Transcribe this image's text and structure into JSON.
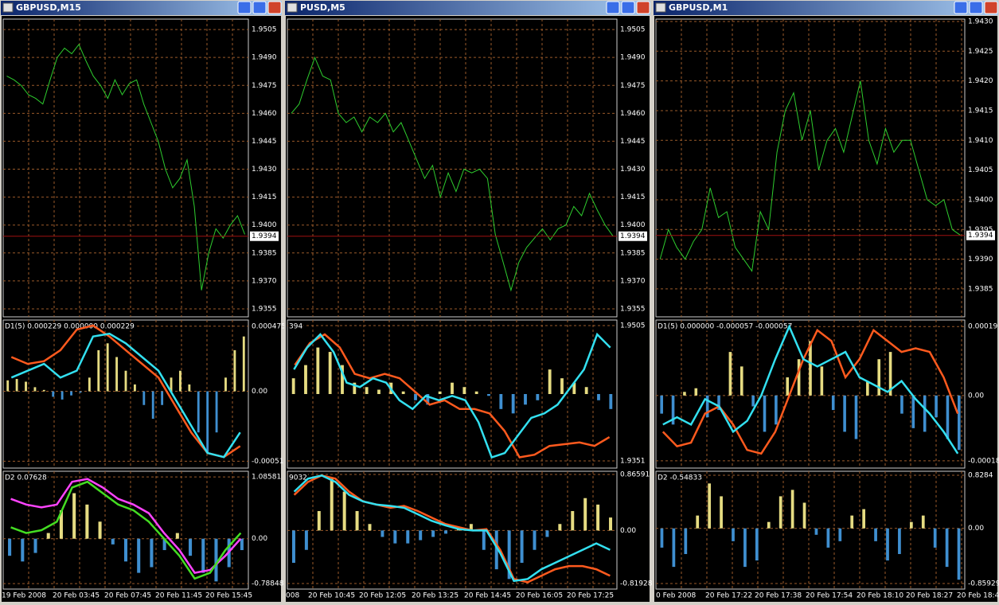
{
  "windows": [
    {
      "title": "GBPUSD,M15",
      "main": {
        "ylim": [
          1.93507,
          1.95106
        ],
        "yticks": [
          1.9505,
          {
            "value": 1.949,
            "label": "1.9490"
          },
          1.9475,
          {
            "value": 1.946,
            "label": "1.9460"
          },
          1.9445,
          {
            "value": 1.943,
            "label": "1.9430"
          },
          1.9415,
          {
            "value": 1.94,
            "label": "1.9400"
          },
          1.9385,
          {
            "value": 1.937,
            "label": "1.9370"
          },
          1.9355
        ],
        "current": 1.9394,
        "color": "#2ecc2e",
        "prices": [
          1.948,
          1.9478,
          1.9475,
          1.947,
          1.9468,
          1.9465,
          1.9478,
          1.949,
          1.9495,
          1.9492,
          1.9497,
          1.9488,
          1.948,
          1.9475,
          1.9468,
          1.9478,
          1.947,
          1.9476,
          1.9478,
          1.9465,
          1.9455,
          1.9445,
          1.943,
          1.942,
          1.9425,
          1.9435,
          1.941,
          1.9365,
          1.9385,
          1.9398,
          1.9393,
          1.94,
          1.9405,
          1.9395
        ]
      },
      "d1": {
        "label": "D1(5) 0.000229 0.000000 0.000229",
        "ylim": [
          -0.00056,
          0.00052
        ],
        "yticks": [
          0.000475,
          {
            "value": 0,
            "label": "0.00"
          },
          -0.00051
        ],
        "up_color": "#e6dc82",
        "down_color": "#3f8fd0",
        "hist": [
          8e-05,
          9e-05,
          7e-05,
          3e-05,
          1e-05,
          -4e-05,
          -6e-05,
          -3e-05,
          -1e-05,
          0.0001,
          0.0003,
          0.00035,
          0.00025,
          0.00015,
          5e-05,
          -0.0001,
          -0.0002,
          -0.0001,
          0.0001,
          0.00015,
          5e-05,
          -0.0003,
          -0.00045,
          -0.0003,
          0.0001,
          0.0003,
          0.0004
        ],
        "lines": [
          {
            "color": "#ff5a1e",
            "values": [
              0.00025,
              0.0002,
              0.00022,
              0.0003,
              0.00045,
              0.00048,
              0.0004,
              0.0003,
              0.0002,
              0.0001,
              -0.0001,
              -0.0003,
              -0.00045,
              -0.00048,
              -0.0004
            ]
          },
          {
            "color": "#33e0f0",
            "values": [
              0.0001,
              0.00015,
              0.0002,
              0.0001,
              0.00015,
              0.0004,
              0.00042,
              0.00035,
              0.00025,
              0.00015,
              -5e-05,
              -0.00025,
              -0.00045,
              -0.00048,
              -0.0003
            ]
          }
        ]
      },
      "d2": {
        "label": "D2 0.07628",
        "ylim": [
          -0.885,
          1.185
        ],
        "yticks": [
          1.08581,
          {
            "value": 0,
            "label": "0.00"
          },
          -0.78848
        ],
        "up_color": "#e6dc82",
        "down_color": "#3f8fd0",
        "hist": [
          -0.3,
          -0.4,
          -0.25,
          0.1,
          0.5,
          0.8,
          0.6,
          0.3,
          -0.1,
          -0.4,
          -0.6,
          -0.5,
          -0.2,
          0.1,
          -0.3,
          -0.6,
          -0.75,
          -0.5,
          -0.2
        ],
        "lines": [
          {
            "color": "#ff44ff",
            "values": [
              0.7,
              0.6,
              0.55,
              0.6,
              1.0,
              1.05,
              0.9,
              0.7,
              0.6,
              0.45,
              0.1,
              -0.2,
              -0.6,
              -0.55,
              -0.3,
              0.0
            ]
          },
          {
            "color": "#44dd22",
            "values": [
              0.2,
              0.1,
              0.15,
              0.3,
              0.9,
              1.0,
              0.8,
              0.6,
              0.5,
              0.3,
              0.0,
              -0.3,
              -0.7,
              -0.6,
              -0.2,
              0.1
            ]
          }
        ]
      },
      "times": [
        "19 Feb 2008",
        "20 Feb 03:45",
        "20 Feb 07:45",
        "20 Feb 11:45",
        "20 Feb 15:45"
      ]
    },
    {
      "title": "PUSD,M5",
      "main": {
        "ylim": [
          1.93507,
          1.95106
        ],
        "yticks": [
          1.9505,
          {
            "value": 1.949,
            "label": "1.9490"
          },
          1.9475,
          {
            "value": 1.946,
            "label": "1.9460"
          },
          1.9445,
          {
            "value": 1.943,
            "label": "1.9430"
          },
          1.9415,
          {
            "value": 1.94,
            "label": "1.9400"
          },
          1.9385,
          {
            "value": 1.937,
            "label": "1.9370"
          },
          1.9355
        ],
        "current": 1.9394,
        "color": "#2ecc2e",
        "prices": [
          1.946,
          1.9465,
          1.9478,
          1.949,
          1.948,
          1.9478,
          1.946,
          1.9455,
          1.9458,
          1.945,
          1.9458,
          1.9455,
          1.946,
          1.945,
          1.9455,
          1.9445,
          1.9435,
          1.9425,
          1.9432,
          1.9415,
          1.9428,
          1.9418,
          1.943,
          1.9428,
          1.943,
          1.9425,
          1.9395,
          1.938,
          1.9365,
          1.938,
          1.9388,
          1.9393,
          1.9398,
          1.9392,
          1.9398,
          1.94,
          1.941,
          1.9405,
          1.9417,
          1.9408,
          1.94,
          1.9394
        ]
      },
      "d1": {
        "label": "394",
        "ylim": [
          1.93428,
          1.95113
        ],
        "yticks": [
          1.9505,
          1.9351
        ],
        "up_color": "#e6dc82",
        "down_color": "#3f8fd0",
        "hist": [
          1.9445,
          1.946,
          1.948,
          1.9475,
          1.946,
          1.944,
          1.9435,
          1.9432,
          1.944,
          1.943,
          1.942,
          1.9415,
          1.943,
          1.944,
          1.9435,
          1.943,
          1.9425,
          1.941,
          1.9405,
          1.9415,
          1.942,
          1.9455,
          1.9445,
          1.944,
          1.9435,
          1.942,
          1.941
        ],
        "lines": [
          {
            "color": "#ff5a1e",
            "values": [
              1.946,
              1.9485,
              1.9495,
              1.948,
              1.945,
              1.9445,
              1.945,
              1.9445,
              1.943,
              1.9415,
              1.942,
              1.941,
              1.941,
              1.9405,
              1.9385,
              1.9355,
              1.9358,
              1.9368,
              1.937,
              1.9372,
              1.9368,
              1.9378
            ]
          },
          {
            "color": "#33e0f0",
            "values": [
              1.9455,
              1.948,
              1.9495,
              1.9475,
              1.944,
              1.9435,
              1.9445,
              1.944,
              1.942,
              1.941,
              1.9425,
              1.942,
              1.9425,
              1.942,
              1.9395,
              1.9355,
              1.936,
              1.938,
              1.94,
              1.9405,
              1.9415,
              1.9435,
              1.9455,
              1.9495,
              1.948
            ]
          }
        ]
      },
      "d2": {
        "label": "9032",
        "ylim": [
          -0.906,
          0.915
        ],
        "yticks": [
          0.86591,
          {
            "value": 0,
            "label": "0.00"
          },
          -0.81928
        ],
        "up_color": "#e6dc82",
        "down_color": "#3f8fd0",
        "hist": [
          -0.5,
          -0.3,
          0.3,
          0.8,
          0.6,
          0.3,
          0.1,
          -0.1,
          -0.2,
          -0.2,
          -0.15,
          -0.1,
          -0.05,
          0.05,
          0.1,
          -0.3,
          -0.6,
          -0.75,
          -0.5,
          -0.3,
          -0.1,
          0.1,
          0.3,
          0.5,
          0.4,
          0.2
        ],
        "lines": [
          {
            "color": "#ff5a1e",
            "values": [
              0.55,
              0.75,
              0.85,
              0.8,
              0.6,
              0.45,
              0.4,
              0.35,
              0.38,
              0.3,
              0.2,
              0.1,
              0.05,
              0.0,
              0.02,
              -0.3,
              -0.75,
              -0.8,
              -0.7,
              -0.6,
              -0.55,
              -0.55,
              -0.6,
              -0.7
            ]
          },
          {
            "color": "#33e0f0",
            "values": [
              0.6,
              0.8,
              0.85,
              0.75,
              0.55,
              0.45,
              0.4,
              0.38,
              0.35,
              0.25,
              0.15,
              0.08,
              0.02,
              0.0,
              0.0,
              -0.35,
              -0.78,
              -0.75,
              -0.6,
              -0.5,
              -0.4,
              -0.3,
              -0.2,
              -0.3
            ]
          }
        ]
      },
      "times": [
        "008",
        "20 Feb 10:45",
        "20 Feb 12:05",
        "20 Feb 13:25",
        "20 Feb 14:45",
        "20 Feb 16:05",
        "20 Feb 17:25"
      ]
    },
    {
      "title": "GBPUSD,M1",
      "main": {
        "ylim": [
          1.93803,
          1.94304
        ],
        "yticks": [
          {
            "value": 1.943,
            "label": "1.9430"
          },
          1.9425,
          {
            "value": 1.942,
            "label": "1.9420"
          },
          1.9415,
          {
            "value": 1.941,
            "label": "1.9410"
          },
          1.9405,
          {
            "value": 1.94,
            "label": "1.9400"
          },
          1.9395,
          {
            "value": 1.939,
            "label": "1.9390"
          },
          1.9385
        ],
        "current": 1.9394,
        "color": "#2ecc2e",
        "prices": [
          1.939,
          1.9395,
          1.9392,
          1.939,
          1.9393,
          1.9395,
          1.9402,
          1.9397,
          1.9398,
          1.9392,
          1.939,
          1.9388,
          1.9398,
          1.9395,
          1.9408,
          1.9415,
          1.9418,
          1.941,
          1.9415,
          1.9405,
          1.941,
          1.9412,
          1.9408,
          1.9414,
          1.942,
          1.941,
          1.9406,
          1.9412,
          1.9408,
          1.941,
          1.941,
          1.9405,
          1.94,
          1.9399,
          1.94,
          1.9395,
          1.9394
        ]
      },
      "d1": {
        "label": "D1(5) 0.000000 -0.000057 -0.000057",
        "ylim": [
          -0.0002,
          0.000208
        ],
        "yticks": [
          0.00019,
          {
            "value": 0,
            "label": "0.00"
          },
          -0.00018
        ],
        "up_color": "#e6dc82",
        "down_color": "#3f8fd0",
        "hist": [
          -5e-05,
          -8e-05,
          1e-05,
          2e-05,
          -6e-05,
          -4e-05,
          0.00012,
          8e-05,
          -3e-05,
          -0.0001,
          -8e-05,
          5e-05,
          0.0001,
          0.00015,
          8e-05,
          -4e-05,
          -0.0001,
          -0.00012,
          4e-05,
          0.0001,
          0.00012,
          -5e-05,
          -9e-05,
          -0.0001,
          -6e-05,
          -0.00012,
          -0.00015
        ],
        "lines": [
          {
            "color": "#ff5a1e",
            "values": [
              -0.0001,
              -0.00014,
              -0.00013,
              -5e-05,
              -3e-05,
              -8e-05,
              -0.00015,
              -0.00016,
              -0.0001,
              0.0,
              0.0001,
              0.00018,
              0.00015,
              5e-05,
              0.0001,
              0.00018,
              0.00015,
              0.00012,
              0.00013,
              0.00012,
              5e-05,
              -5e-05
            ]
          },
          {
            "color": "#33e0f0",
            "values": [
              -8e-05,
              -6e-05,
              -8e-05,
              -1e-05,
              -3e-05,
              -0.0001,
              -7e-05,
              0.0,
              0.0001,
              0.00019,
              0.0001,
              8e-05,
              0.0001,
              0.00012,
              5e-05,
              3e-05,
              1e-05,
              4e-05,
              -1e-05,
              -5e-05,
              -0.0001,
              -0.00016
            ]
          }
        ]
      },
      "d2": {
        "label": "D2 -0.54833",
        "ylim": [
          -0.946,
          0.89
        ],
        "yticks": [
          0.8284,
          {
            "value": 0,
            "label": "0.00"
          },
          -0.85929
        ],
        "up_color": "#e6dc82",
        "down_color": "#3f8fd0",
        "hist": [
          -0.3,
          -0.6,
          -0.4,
          0.2,
          0.7,
          0.5,
          -0.2,
          -0.6,
          -0.5,
          0.1,
          0.5,
          0.6,
          0.4,
          -0.1,
          -0.3,
          -0.2,
          0.2,
          0.3,
          -0.2,
          -0.5,
          -0.4,
          0.1,
          0.2,
          -0.3,
          -0.6,
          -0.8
        ]
      },
      "times": [
        "0 Feb 2008",
        "20 Feb 17:22",
        "20 Feb 17:38",
        "20 Feb 17:54",
        "20 Feb 18:10",
        "20 Feb 18:27",
        "20 Feb 18:4"
      ]
    }
  ]
}
